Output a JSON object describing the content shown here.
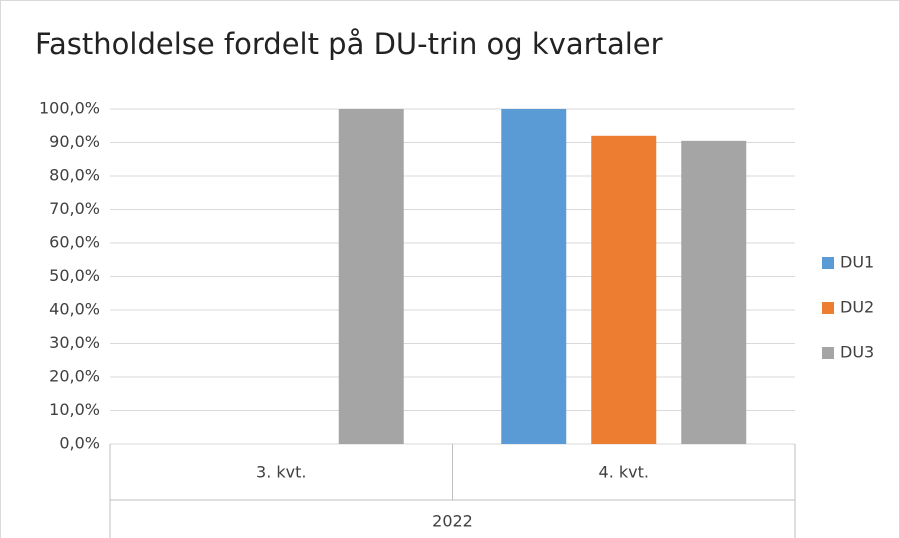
{
  "chart_data": {
    "type": "bar",
    "title": "Fastholdelse fordelt på DU-trin og kvartaler",
    "categories": [
      "3. kvt.",
      "4. kvt."
    ],
    "category_group": "2022",
    "series": [
      {
        "name": "DU1",
        "color": "#5b9bd5",
        "values": [
          null,
          100
        ]
      },
      {
        "name": "DU2",
        "color": "#ed7d31",
        "values": [
          null,
          92
        ]
      },
      {
        "name": "DU3",
        "color": "#a5a5a5",
        "values": [
          100,
          90.5
        ]
      }
    ],
    "ylim": [
      0,
      100
    ],
    "yticks": [
      {
        "value": 0,
        "label": "0,0%"
      },
      {
        "value": 10,
        "label": "10,0%"
      },
      {
        "value": 20,
        "label": "20,0%"
      },
      {
        "value": 30,
        "label": "30,0%"
      },
      {
        "value": 40,
        "label": "40,0%"
      },
      {
        "value": 50,
        "label": "50,0%"
      },
      {
        "value": 60,
        "label": "60,0%"
      },
      {
        "value": 70,
        "label": "70,0%"
      },
      {
        "value": 80,
        "label": "80,0%"
      },
      {
        "value": 90,
        "label": "90,0%"
      },
      {
        "value": 100,
        "label": "100,0%"
      }
    ],
    "grid": true,
    "legend": "right"
  }
}
